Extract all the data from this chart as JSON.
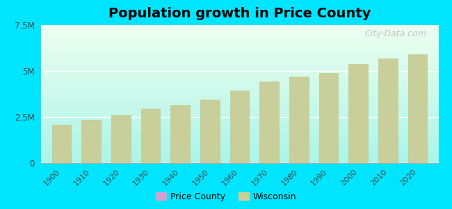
{
  "title": "Population growth in Price County",
  "title_fontsize": 14,
  "background_color": "#00e5ff",
  "plot_bg_top": "#e8f5ee",
  "plot_bg_bottom": "#aaf0e8",
  "years": [
    1900,
    1910,
    1920,
    1930,
    1940,
    1950,
    1960,
    1970,
    1980,
    1990,
    2000,
    2010,
    2020
  ],
  "wisconsin_pop": [
    2069042,
    2333860,
    2632067,
    2939006,
    3137587,
    3434575,
    3951777,
    4417731,
    4705335,
    4891769,
    5363675,
    5686986,
    5893718
  ],
  "bar_color": "#c8cf9a",
  "bar_edge_color": "#c0c88a",
  "ylim": [
    0,
    7500000
  ],
  "yticks": [
    0,
    2500000,
    5000000,
    7500000
  ],
  "ytick_labels": [
    "0",
    "2.5M",
    "5M",
    "7.5M"
  ],
  "legend_price_color": "#d4a0d0",
  "legend_wisconsin_color": "#c8cf9a",
  "watermark": "City-Data.com",
  "watermark_fontsize": 9,
  "bar_width": 6.5,
  "xlim_left": 1893,
  "xlim_right": 2027
}
